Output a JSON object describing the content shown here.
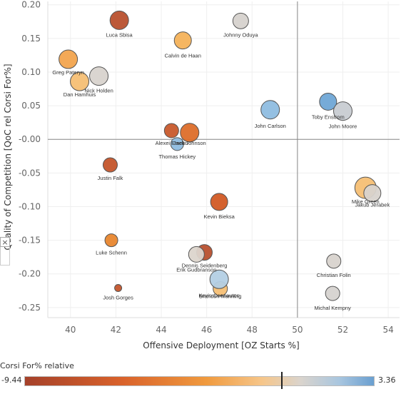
{
  "chart_data": {
    "type": "scatter",
    "xlabel": "Offensive Deployment [OZ Starts %]",
    "ylabel": "Quality of Competition [QoC rel Corsi For%]",
    "xlim": [
      39,
      54.5
    ],
    "ylim": [
      -0.265,
      0.205
    ],
    "xticks": [
      40,
      42,
      44,
      46,
      48,
      50,
      52,
      54
    ],
    "yticks": [
      0.2,
      0.15,
      0.1,
      0.05,
      0.0,
      -0.05,
      -0.1,
      -0.15,
      -0.2,
      -0.25
    ],
    "ytick_labels": [
      "0.20",
      "0.15",
      "0.10",
      "0.05",
      "-0.00",
      "-0.05",
      "-0.10",
      "-0.15",
      "-0.20",
      "-0.25"
    ],
    "reference_lines": {
      "x": 50,
      "y": 0
    },
    "grid": true,
    "color_by": "Corsi For% relative",
    "color_range": [
      -9.44,
      3.36
    ],
    "legend": {
      "title": "Corsi For% relative",
      "min_label": "-9.44",
      "max_label": "3.36",
      "placement": "bottom"
    },
    "points": [
      {
        "label": "Luca Sbisa",
        "x": 42.15,
        "y": 0.177,
        "size": 13,
        "color": "#b8502e"
      },
      {
        "label": "Johnny Oduya",
        "x": 47.5,
        "y": 0.176,
        "size": 11,
        "color": "#d6d2ce"
      },
      {
        "label": "Calvin de Haan",
        "x": 44.95,
        "y": 0.147,
        "size": 12,
        "color": "#f4b25a"
      },
      {
        "label": "Greg Pateryn",
        "x": 39.9,
        "y": 0.119,
        "size": 13,
        "color": "#f2a44e"
      },
      {
        "label": "Nick Holden",
        "x": 41.25,
        "y": 0.094,
        "size": 13,
        "color": "#d8d3ce"
      },
      {
        "label": "Dan Hamhuis",
        "x": 40.4,
        "y": 0.086,
        "size": 13,
        "color": "#f6bf74"
      },
      {
        "label": "John Carlson",
        "x": 48.8,
        "y": 0.044,
        "size": 13,
        "color": "#8fbde0"
      },
      {
        "label": "Toby Enstrom",
        "x": 51.35,
        "y": 0.056,
        "size": 12,
        "color": "#6fa6d6"
      },
      {
        "label": "John Moore",
        "x": 52.0,
        "y": 0.042,
        "size": 13,
        "color": "#c8ccd2"
      },
      {
        "label": "Alexei Emelin",
        "x": 44.45,
        "y": 0.013,
        "size": 10,
        "color": "#c85a2c"
      },
      {
        "label": "Jack Johnson",
        "x": 45.25,
        "y": 0.01,
        "size": 13,
        "color": "#dd6e2a"
      },
      {
        "label": "Thomas Hickey",
        "x": 44.7,
        "y": -0.007,
        "size": 9,
        "color": "#8fbde0"
      },
      {
        "label": "Justin Falk",
        "x": 41.75,
        "y": -0.038,
        "size": 10,
        "color": "#c4552b"
      },
      {
        "label": "Mike Green",
        "x": 53.0,
        "y": -0.072,
        "size": 15,
        "color": "#f6bf74"
      },
      {
        "label": "Jakub Jerabek",
        "x": 53.3,
        "y": -0.08,
        "size": 12,
        "color": "#d8d3ce"
      },
      {
        "label": "Kevin Bieksa",
        "x": 46.55,
        "y": -0.093,
        "size": 12,
        "color": "#d25a24"
      },
      {
        "label": "Luke Schenn",
        "x": 41.8,
        "y": -0.15,
        "size": 9,
        "color": "#e8862e"
      },
      {
        "label": "Dennis Seidenberg",
        "x": 45.9,
        "y": -0.168,
        "size": 11,
        "color": "#b8502e"
      },
      {
        "label": "Erik Gudbranson",
        "x": 45.55,
        "y": -0.171,
        "size": 11,
        "color": "#dcd5cc"
      },
      {
        "label": "Christian Folin",
        "x": 51.6,
        "y": -0.181,
        "size": 10,
        "color": "#d8d3ce"
      },
      {
        "label": "Brandon Manning",
        "x": 46.6,
        "y": -0.222,
        "size": 10,
        "color": "#f6bf74"
      },
      {
        "label": "Kevin Connauton",
        "x": 46.55,
        "y": -0.208,
        "size": 13,
        "color": "#b3cfe4"
      },
      {
        "label": "Josh Gorges",
        "x": 42.1,
        "y": -0.221,
        "size": 5,
        "color": "#c4552b"
      },
      {
        "label": "Michal Kempny",
        "x": 51.55,
        "y": -0.229,
        "size": 10,
        "color": "#d6d3d0"
      }
    ]
  },
  "ui": {
    "collapse_symbol": "×"
  }
}
